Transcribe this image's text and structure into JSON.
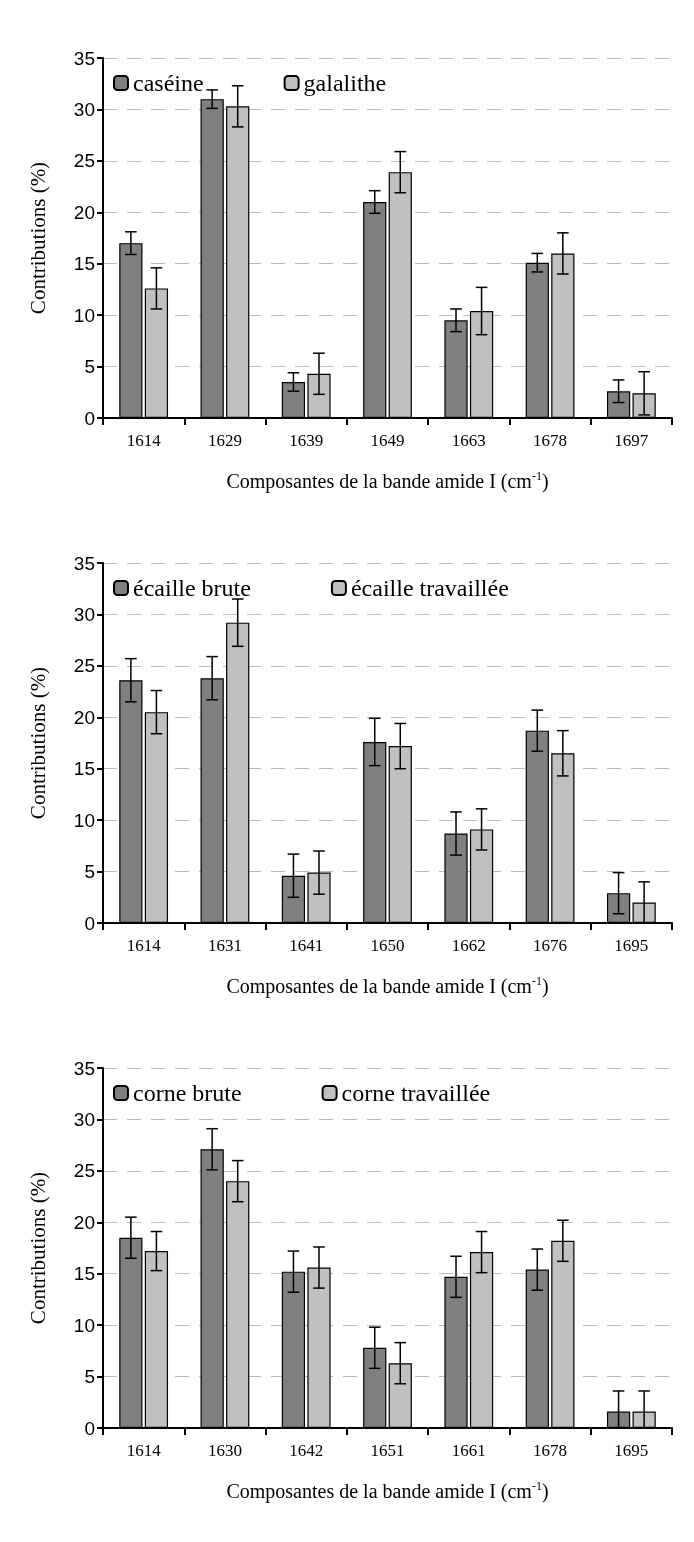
{
  "chart_data": [
    {
      "type": "bar",
      "categories": [
        "1614",
        "1629",
        "1639",
        "1649",
        "1663",
        "1678",
        "1697"
      ],
      "xlabel": "Composantes de la bande amide I (cm$^{-1}$)",
      "ylabel": "Contributions (%)",
      "ylim": [
        0,
        35
      ],
      "yticks": [
        0,
        5,
        10,
        15,
        20,
        25,
        30,
        35
      ],
      "grid": "y",
      "legend": "top",
      "series": [
        {
          "name": "caséine",
          "color": "#808080",
          "values": [
            17,
            31,
            3.5,
            21,
            9.5,
            15.1,
            2.6
          ],
          "errors": [
            1.1,
            0.9,
            0.9,
            1.1,
            1.1,
            0.9,
            1.1
          ]
        },
        {
          "name": "galalithe",
          "color": "#c0c0c0",
          "values": [
            12.6,
            30.3,
            4.3,
            23.9,
            10.4,
            16,
            2.4
          ],
          "errors": [
            2,
            2,
            2,
            2,
            2.3,
            2,
            2.1
          ]
        }
      ]
    },
    {
      "type": "bar",
      "categories": [
        "1614",
        "1631",
        "1641",
        "1650",
        "1662",
        "1676",
        "1695"
      ],
      "xlabel": "Composantes de la bande amide I (cm$^{-1}$)",
      "ylabel": "Contributions (%)",
      "ylim": [
        0,
        35
      ],
      "yticks": [
        0,
        5,
        10,
        15,
        20,
        25,
        30,
        35
      ],
      "grid": "y",
      "legend": "top",
      "series": [
        {
          "name": "écaille brute",
          "color": "#808080",
          "values": [
            23.6,
            23.8,
            4.6,
            17.6,
            8.7,
            18.7,
            2.9
          ],
          "errors": [
            2.1,
            2.1,
            2.1,
            2.3,
            2.1,
            2,
            2
          ]
        },
        {
          "name": "écaille travaillée",
          "color": "#c0c0c0",
          "values": [
            20.5,
            29.2,
            4.9,
            17.2,
            9.1,
            16.5,
            2
          ],
          "errors": [
            2.1,
            2.3,
            2.1,
            2.2,
            2,
            2.2,
            2
          ]
        }
      ]
    },
    {
      "type": "bar",
      "categories": [
        "1614",
        "1630",
        "1642",
        "1651",
        "1661",
        "1678",
        "1695"
      ],
      "xlabel": "Composantes de la bande amide I (cm$^{-1}$)",
      "ylabel": "Contributions (%)",
      "ylim": [
        0,
        35
      ],
      "yticks": [
        0,
        5,
        10,
        15,
        20,
        25,
        30,
        35
      ],
      "grid": "y",
      "legend": "top",
      "series": [
        {
          "name": "corne brute",
          "color": "#808080",
          "values": [
            18.5,
            27.1,
            15.2,
            7.8,
            14.7,
            15.4,
            1.6
          ],
          "errors": [
            2,
            2,
            2,
            2,
            2,
            2,
            [
              0,
              3.6
            ]
          ]
        },
        {
          "name": "corne travaillée",
          "color": "#c0c0c0",
          "values": [
            17.2,
            24,
            15.6,
            6.3,
            17.1,
            18.2,
            1.6
          ],
          "errors": [
            1.9,
            2,
            2,
            2,
            2,
            2,
            [
              0,
              3.6
            ]
          ]
        }
      ]
    }
  ]
}
